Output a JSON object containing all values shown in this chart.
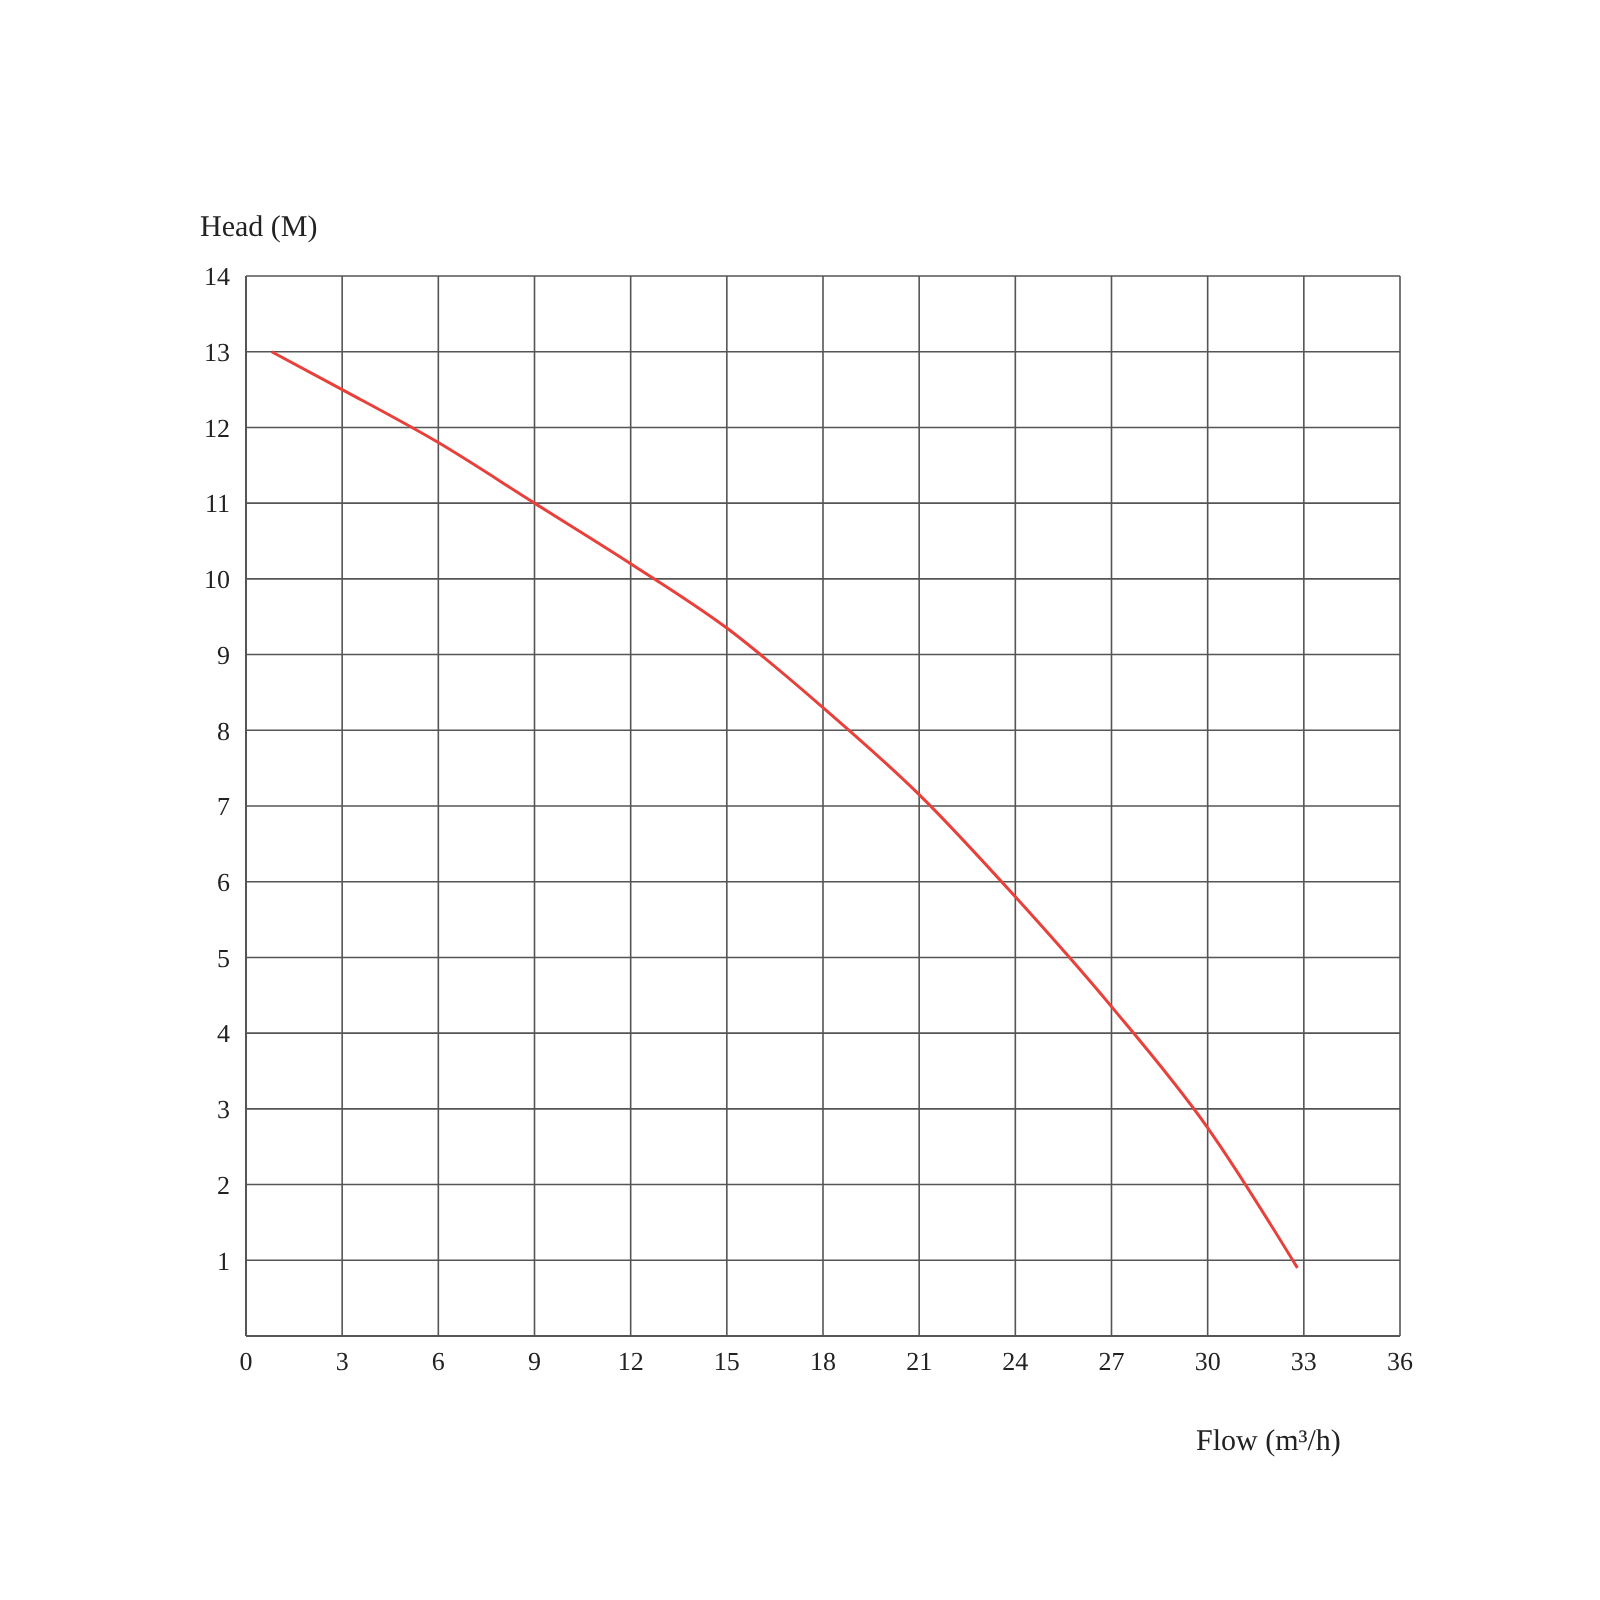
{
  "chart_data": {
    "type": "line",
    "xlabel": "Flow (m³/h)",
    "ylabel": "Head (M)",
    "x": [
      0.8,
      3,
      6,
      9,
      12,
      15,
      18,
      21,
      24,
      27,
      30,
      32.8
    ],
    "series": [
      {
        "color": "#e8403a",
        "values": [
          13,
          12.5,
          11.8,
          11.0,
          10.2,
          9.35,
          8.3,
          7.15,
          5.8,
          4.35,
          2.75,
          0.9
        ]
      }
    ],
    "xlim": [
      0,
      36
    ],
    "xticks": [
      0,
      3,
      6,
      9,
      12,
      15,
      18,
      21,
      24,
      27,
      30,
      33,
      36
    ],
    "ylim": [
      0,
      14
    ],
    "yticks": [
      1,
      2,
      3,
      4,
      5,
      6,
      7,
      8,
      9,
      10,
      11,
      12,
      13,
      14
    ],
    "grid": true
  }
}
